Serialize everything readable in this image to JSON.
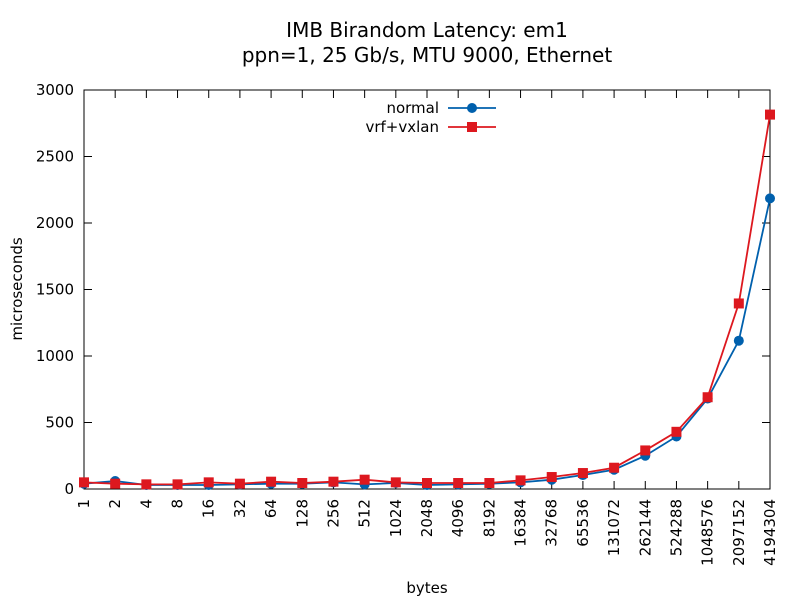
{
  "chart_data": {
    "type": "line",
    "title": "IMB Birandom Latency: em1",
    "subtitle": "ppn=1, 25 Gb/s, MTU 9000, Ethernet",
    "xlabel": "bytes",
    "ylabel": "microseconds",
    "categories": [
      "1",
      "2",
      "4",
      "8",
      "16",
      "32",
      "64",
      "128",
      "256",
      "512",
      "1024",
      "2048",
      "4096",
      "8192",
      "16384",
      "32768",
      "65536",
      "131072",
      "262144",
      "524288",
      "1048576",
      "2097152",
      "4194304"
    ],
    "ylim": [
      0,
      3000
    ],
    "yticks": [
      0,
      500,
      1000,
      1500,
      2000,
      2500,
      3000
    ],
    "grid": false,
    "legend_position": "top-center",
    "series": [
      {
        "name": "normal",
        "color": "#0060ad",
        "marker": "circle",
        "values": [
          40,
          60,
          30,
          30,
          30,
          35,
          40,
          40,
          50,
          35,
          45,
          30,
          35,
          40,
          50,
          70,
          105,
          145,
          250,
          395,
          680,
          1115,
          2185
        ]
      },
      {
        "name": "vrf+vxlan",
        "color": "#dd181f",
        "marker": "square",
        "values": [
          50,
          40,
          35,
          35,
          50,
          40,
          55,
          45,
          55,
          70,
          50,
          45,
          45,
          45,
          65,
          90,
          120,
          160,
          290,
          430,
          690,
          1395,
          2815
        ]
      }
    ]
  }
}
